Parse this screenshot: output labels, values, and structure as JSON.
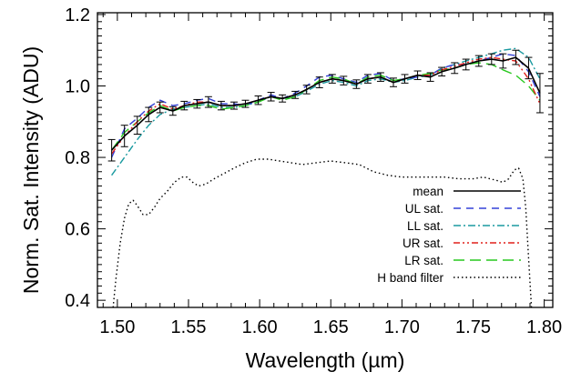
{
  "chart_data": {
    "type": "line",
    "xlabel": "Wavelength (µm)",
    "ylabel": "Norm. Sat. Intensity (ADU)",
    "xlim": [
      1.486,
      1.806
    ],
    "ylim": [
      0.38,
      1.205
    ],
    "x_ticks": [
      1.5,
      1.55,
      1.6,
      1.65,
      1.7,
      1.75,
      1.8
    ],
    "x_tick_labels": [
      "1.50",
      "1.55",
      "1.60",
      "1.65",
      "1.70",
      "1.75",
      "1.80"
    ],
    "y_ticks": [
      0.4,
      0.6,
      0.8,
      1.0,
      1.2
    ],
    "y_tick_labels": [
      "0.4",
      "0.6",
      "0.8",
      "1.0",
      "1.2"
    ],
    "legend_position": "bottom-right",
    "series": [
      {
        "name": "mean",
        "color": "#000000",
        "dash": "",
        "x": [
          1.496,
          1.505,
          1.514,
          1.522,
          1.53,
          1.539,
          1.547,
          1.556,
          1.564,
          1.573,
          1.582,
          1.59,
          1.599,
          1.608,
          1.616,
          1.625,
          1.633,
          1.642,
          1.651,
          1.659,
          1.668,
          1.676,
          1.685,
          1.694,
          1.702,
          1.711,
          1.72,
          1.728,
          1.737,
          1.745,
          1.754,
          1.763,
          1.771,
          1.78,
          1.789,
          1.797
        ],
        "values": [
          0.82,
          0.86,
          0.89,
          0.92,
          0.94,
          0.93,
          0.945,
          0.95,
          0.955,
          0.945,
          0.945,
          0.95,
          0.96,
          0.97,
          0.965,
          0.975,
          0.99,
          1.01,
          1.02,
          1.015,
          1.005,
          1.02,
          1.025,
          1.01,
          1.02,
          1.03,
          1.025,
          1.04,
          1.05,
          1.06,
          1.07,
          1.075,
          1.07,
          1.08,
          1.05,
          0.98
        ],
        "errors": [
          0.03,
          0.03,
          0.025,
          0.02,
          0.015,
          0.012,
          0.012,
          0.012,
          0.015,
          0.012,
          0.01,
          0.01,
          0.012,
          0.012,
          0.01,
          0.01,
          0.012,
          0.015,
          0.012,
          0.012,
          0.012,
          0.012,
          0.012,
          0.012,
          0.012,
          0.012,
          0.012,
          0.012,
          0.015,
          0.015,
          0.015,
          0.015,
          0.02,
          0.02,
          0.03,
          0.055
        ]
      },
      {
        "name": "UL sat.",
        "color": "#3340d8",
        "dash": "8,6",
        "x": [
          1.496,
          1.505,
          1.514,
          1.522,
          1.53,
          1.539,
          1.547,
          1.556,
          1.564,
          1.573,
          1.582,
          1.59,
          1.599,
          1.608,
          1.616,
          1.625,
          1.633,
          1.642,
          1.651,
          1.659,
          1.668,
          1.676,
          1.685,
          1.694,
          1.702,
          1.711,
          1.72,
          1.728,
          1.737,
          1.745,
          1.754,
          1.763,
          1.771,
          1.78,
          1.789,
          1.797
        ],
        "values": [
          0.8,
          0.88,
          0.91,
          0.94,
          0.96,
          0.945,
          0.95,
          0.96,
          0.965,
          0.95,
          0.95,
          0.945,
          0.96,
          0.975,
          0.965,
          0.98,
          1.0,
          1.025,
          1.03,
          1.02,
          1.01,
          1.03,
          1.035,
          1.015,
          1.02,
          1.025,
          1.03,
          1.05,
          1.06,
          1.06,
          1.07,
          1.08,
          1.09,
          1.085,
          1.04,
          0.97
        ]
      },
      {
        "name": "LL sat.",
        "color": "#1a9aa0",
        "dash": "8,3,2,3",
        "x": [
          1.496,
          1.505,
          1.514,
          1.522,
          1.53,
          1.539,
          1.547,
          1.556,
          1.564,
          1.573,
          1.582,
          1.59,
          1.599,
          1.608,
          1.616,
          1.625,
          1.633,
          1.642,
          1.651,
          1.659,
          1.668,
          1.676,
          1.685,
          1.694,
          1.702,
          1.711,
          1.72,
          1.728,
          1.737,
          1.745,
          1.754,
          1.763,
          1.771,
          1.78,
          1.789,
          1.797
        ],
        "values": [
          0.75,
          0.8,
          0.85,
          0.89,
          0.92,
          0.935,
          0.94,
          0.945,
          0.95,
          0.94,
          0.94,
          0.945,
          0.955,
          0.97,
          0.965,
          0.97,
          0.985,
          1.005,
          1.015,
          1.01,
          1.0,
          1.015,
          1.02,
          1.01,
          1.015,
          1.025,
          1.03,
          1.05,
          1.06,
          1.07,
          1.08,
          1.09,
          1.1,
          1.105,
          1.08,
          1.02
        ]
      },
      {
        "name": "UR sat.",
        "color": "#e0201c",
        "dash": "7,3,2,3,2,3",
        "x": [
          1.496,
          1.505,
          1.514,
          1.522,
          1.53,
          1.539,
          1.547,
          1.556,
          1.564,
          1.573,
          1.582,
          1.59,
          1.599,
          1.608,
          1.616,
          1.625,
          1.633,
          1.642,
          1.651,
          1.659,
          1.668,
          1.676,
          1.685,
          1.694,
          1.702,
          1.711,
          1.72,
          1.728,
          1.737,
          1.745,
          1.754,
          1.763,
          1.771,
          1.78,
          1.789,
          1.797
        ],
        "values": [
          0.81,
          0.86,
          0.9,
          0.93,
          0.95,
          0.935,
          0.945,
          0.955,
          0.955,
          0.945,
          0.945,
          0.95,
          0.96,
          0.97,
          0.965,
          0.975,
          0.99,
          1.01,
          1.02,
          1.015,
          1.005,
          1.02,
          1.025,
          1.01,
          1.02,
          1.03,
          1.03,
          1.045,
          1.055,
          1.065,
          1.075,
          1.08,
          1.075,
          1.07,
          1.02,
          0.95
        ]
      },
      {
        "name": "LR sat.",
        "color": "#27c81e",
        "dash": "12,6",
        "x": [
          1.496,
          1.505,
          1.514,
          1.522,
          1.53,
          1.539,
          1.547,
          1.556,
          1.564,
          1.573,
          1.582,
          1.59,
          1.599,
          1.608,
          1.616,
          1.625,
          1.633,
          1.642,
          1.651,
          1.659,
          1.668,
          1.676,
          1.685,
          1.694,
          1.702,
          1.711,
          1.72,
          1.728,
          1.737,
          1.745,
          1.754,
          1.763,
          1.771,
          1.78,
          1.789,
          1.797
        ],
        "values": [
          0.82,
          0.87,
          0.9,
          0.925,
          0.945,
          0.93,
          0.94,
          0.945,
          0.945,
          0.935,
          0.94,
          0.945,
          0.955,
          0.97,
          0.96,
          0.97,
          0.99,
          1.015,
          1.025,
          1.02,
          1.005,
          1.025,
          1.03,
          1.015,
          1.02,
          1.03,
          1.035,
          1.045,
          1.05,
          1.06,
          1.065,
          1.06,
          1.045,
          1.03,
          1.0,
          0.96
        ]
      },
      {
        "name": "H band filter",
        "color": "#000000",
        "dash": "1.5,3",
        "x": [
          1.497,
          1.499,
          1.502,
          1.505,
          1.508,
          1.511,
          1.514,
          1.518,
          1.522,
          1.526,
          1.53,
          1.535,
          1.54,
          1.545,
          1.549,
          1.553,
          1.557,
          1.562,
          1.568,
          1.575,
          1.582,
          1.59,
          1.598,
          1.606,
          1.614,
          1.622,
          1.63,
          1.64,
          1.65,
          1.66,
          1.67,
          1.68,
          1.69,
          1.7,
          1.71,
          1.72,
          1.73,
          1.74,
          1.75,
          1.757,
          1.762,
          1.767,
          1.771,
          1.775,
          1.779,
          1.782,
          1.785,
          1.787,
          1.789,
          1.791
        ],
        "values": [
          0.38,
          0.46,
          0.56,
          0.63,
          0.67,
          0.68,
          0.665,
          0.64,
          0.64,
          0.66,
          0.685,
          0.705,
          0.73,
          0.745,
          0.745,
          0.73,
          0.72,
          0.725,
          0.74,
          0.755,
          0.77,
          0.785,
          0.795,
          0.795,
          0.79,
          0.785,
          0.78,
          0.785,
          0.79,
          0.785,
          0.78,
          0.76,
          0.75,
          0.745,
          0.745,
          0.745,
          0.745,
          0.74,
          0.74,
          0.745,
          0.74,
          0.735,
          0.73,
          0.74,
          0.765,
          0.77,
          0.74,
          0.66,
          0.52,
          0.38
        ]
      }
    ]
  }
}
